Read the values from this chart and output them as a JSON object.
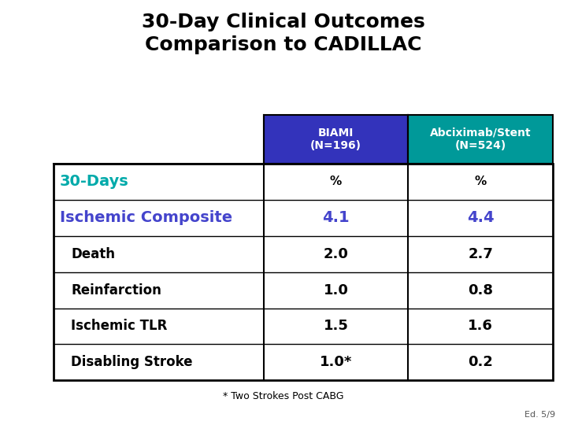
{
  "title_line1": "30-Day Clinical Outcomes",
  "title_line2": "Comparison to CADILLAC",
  "title_color": "#000000",
  "title_fontsize": 18,
  "col1_header_line1": "BIAMI",
  "col1_header_line2": "(N=196)",
  "col1_header_bg": "#3333BB",
  "col1_header_color": "#FFFFFF",
  "col2_header_line1": "Abciximab/Stent",
  "col2_header_line2": "(N=524)",
  "col2_header_bg": "#009999",
  "col2_header_color": "#FFFFFF",
  "row_label_col": [
    "30-Days",
    "Ischemic Composite",
    "Death",
    "Reinfarction",
    "Ischemic TLR",
    "Disabling Stroke"
  ],
  "row_label_colors": [
    "#00AAAA",
    "#4444CC",
    "#000000",
    "#000000",
    "#000000",
    "#000000"
  ],
  "row_label_sizes": [
    14,
    14,
    12,
    12,
    12,
    12
  ],
  "row_label_indent": [
    false,
    false,
    true,
    true,
    true,
    true
  ],
  "col1_values": [
    "%",
    "4.1",
    "2.0",
    "1.0",
    "1.5",
    "1.0*"
  ],
  "col2_values": [
    "%",
    "4.4",
    "2.7",
    "0.8",
    "1.6",
    "0.2"
  ],
  "value_fontsize_pct": 11,
  "value_fontsize_composite": 14,
  "value_fontsize_sub": 13,
  "value_color_pct": "#000000",
  "value_color_composite": "#4444CC",
  "value_color_sub": "#000000",
  "footnote": "* Two Strokes Post CABG",
  "footnote_fontsize": 9,
  "slide_id": "Ed. 5/9",
  "slide_id_fontsize": 8,
  "bg_color": "#FFFFFF",
  "table_border_color": "#000000"
}
